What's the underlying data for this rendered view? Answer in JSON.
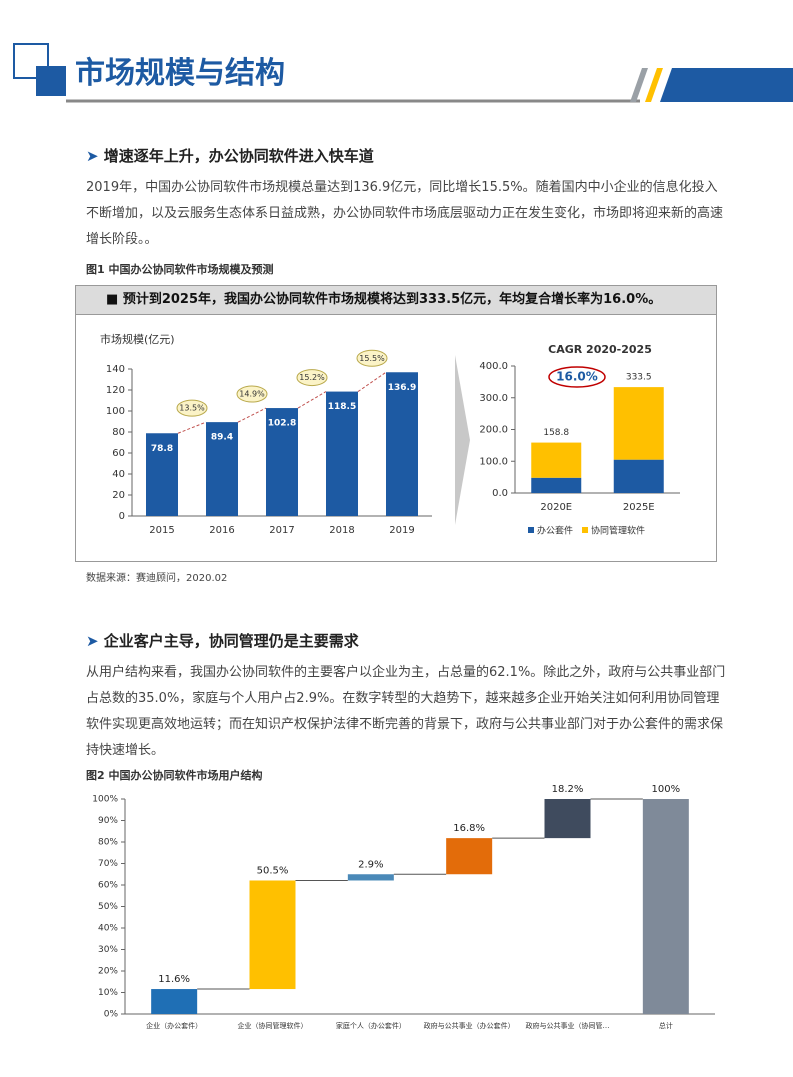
{
  "header": {
    "title": "市场规模与结构"
  },
  "sections": [
    {
      "heading": "增速逐年上升，办公协同软件进入快车道",
      "paragraph": "2019年，中国办公协同软件市场规模总量达到136.9亿元，同比增长15.5%。随着国内中小企业的信息化投入不断增加，以及云服务生态体系日益成熟，办公协同软件市场底层驱动力正在发生变化，市场即将迎来新的高速增长阶段。。",
      "figure_caption": "图1  中国办公协同软件市场规模及预测",
      "banner": "预计到2025年，我国办公协同软件市场规模将达到333.5亿元，年均复合增长率为16.0%。",
      "source": "数据来源：赛迪顾问，2020.02"
    },
    {
      "heading": "企业客户主导，协同管理仍是主要需求",
      "paragraph": "从用户结构来看，我国办公协同软件的主要客户以企业为主，占总量的62.1%。除此之外，政府与公共事业部门占总数的35.0%，家庭与个人用户占2.9%。在数字转型的大趋势下，越来越多企业开始关注如何利用协同管理软件实现更高效地运转；而在知识产权保护法律不断完善的背景下，政府与公共事业部门对于办公套件的需求保持快速增长。",
      "figure_caption": "图2  中国办公协同软件市场用户结构"
    }
  ],
  "chart_data": [
    {
      "type": "bar",
      "y_label": "市场规模(亿元)",
      "categories": [
        "2015",
        "2016",
        "2017",
        "2018",
        "2019"
      ],
      "values": [
        78.8,
        89.4,
        102.8,
        118.5,
        136.9
      ],
      "color": "#1d5aa3",
      "annotations": [
        "13.5%",
        "14.9%",
        "15.2%",
        "15.5%"
      ],
      "ylim": [
        0,
        140
      ],
      "yticks": [
        0,
        20,
        40,
        60,
        80,
        100,
        120,
        140
      ]
    },
    {
      "type": "stacked_bar",
      "title": "CAGR  2020-2025",
      "annotation": "16.0%",
      "categories": [
        "2020E",
        "2025E"
      ],
      "series": [
        {
          "name": "办公套件",
          "color": "#1d5aa3",
          "values": [
            48,
            105
          ]
        },
        {
          "name": "协同管理软件",
          "color": "#ffc000",
          "values": [
            110.8,
            228.5
          ]
        }
      ],
      "totals": [
        158.8,
        333.5
      ],
      "ylim": [
        0,
        400
      ],
      "yticks": [
        {
          "value": 0,
          "label": "0.0"
        },
        {
          "value": 100,
          "label": "100.0"
        },
        {
          "value": 200,
          "label": "200.0"
        },
        {
          "value": 300,
          "label": "300.0"
        },
        {
          "value": 400,
          "label": "400.0"
        }
      ]
    },
    {
      "type": "waterfall",
      "categories": [
        "企业（办公套件）",
        "企业（协同管理软件）",
        "家庭个人（办公套件）",
        "政府与公共事业（办公套件）",
        "政府与公共事业（协同管…",
        "总计"
      ],
      "values": [
        11.6,
        50.5,
        2.9,
        16.8,
        18.2,
        100
      ],
      "value_labels": [
        "11.6%",
        "50.5%",
        "2.9%",
        "16.8%",
        "18.2%",
        "100%"
      ],
      "colors": [
        "#1f6fb5",
        "#ffc000",
        "#4a89b8",
        "#e36c0a",
        "#3f4b5e",
        "#7f8a99"
      ],
      "ylim": [
        0,
        100
      ],
      "yticks": [
        {
          "value": 0,
          "label": "0%"
        },
        {
          "value": 10,
          "label": "10%"
        },
        {
          "value": 20,
          "label": "20%"
        },
        {
          "value": 30,
          "label": "30%"
        },
        {
          "value": 40,
          "label": "40%"
        },
        {
          "value": 50,
          "label": "50%"
        },
        {
          "value": 60,
          "label": "60%"
        },
        {
          "value": 70,
          "label": "70%"
        },
        {
          "value": 80,
          "label": "80%"
        },
        {
          "value": 90,
          "label": "90%"
        },
        {
          "value": 100,
          "label": "100%"
        }
      ]
    }
  ]
}
